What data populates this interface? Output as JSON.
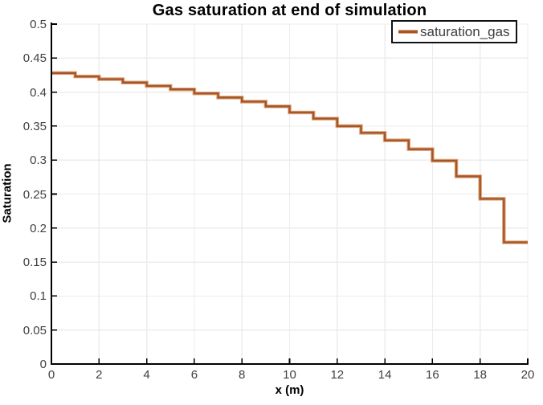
{
  "chart": {
    "title": "Gas saturation at end of simulation",
    "xlabel": "x (m)",
    "ylabel": "Saturation",
    "legend": "saturation_gas"
  },
  "chart_data": {
    "type": "line",
    "line_style": "steps-post (piecewise-constant cell values)",
    "title": "Gas saturation at end of simulation",
    "xlabel": "x (m)",
    "ylabel": "Saturation",
    "xlim": [
      0,
      20
    ],
    "ylim": [
      0,
      0.5
    ],
    "grid": true,
    "legend_position": "top-right",
    "x_tick_labels": [
      "0",
      "2",
      "4",
      "6",
      "8",
      "10",
      "12",
      "14",
      "16",
      "18",
      "20"
    ],
    "x_tick_values": [
      0,
      2,
      4,
      6,
      8,
      10,
      12,
      14,
      16,
      18,
      20
    ],
    "y_tick_labels": [
      "0",
      "0.05",
      "0.1",
      "0.15",
      "0.2",
      "0.25",
      "0.3",
      "0.35",
      "0.4",
      "0.45",
      "0.5"
    ],
    "y_tick_values": [
      0,
      0.05,
      0.1,
      0.15,
      0.2,
      0.25,
      0.3,
      0.35,
      0.4,
      0.45,
      0.5
    ],
    "series": [
      {
        "name": "saturation_gas",
        "cell_edges_x": [
          0,
          1,
          2,
          3,
          4,
          5,
          6,
          7,
          8,
          9,
          10,
          11,
          12,
          13,
          14,
          15,
          16,
          17,
          18,
          19,
          20
        ],
        "values": [
          0.428,
          0.423,
          0.419,
          0.414,
          0.409,
          0.404,
          0.398,
          0.392,
          0.386,
          0.379,
          0.37,
          0.361,
          0.35,
          0.34,
          0.329,
          0.316,
          0.299,
          0.276,
          0.243,
          0.179
        ]
      }
    ],
    "colors": {
      "line": "#a4562a",
      "line_halo": "#dfa578",
      "grid": "#ececec",
      "axis": "#000000",
      "tick_label": "#404040"
    }
  }
}
